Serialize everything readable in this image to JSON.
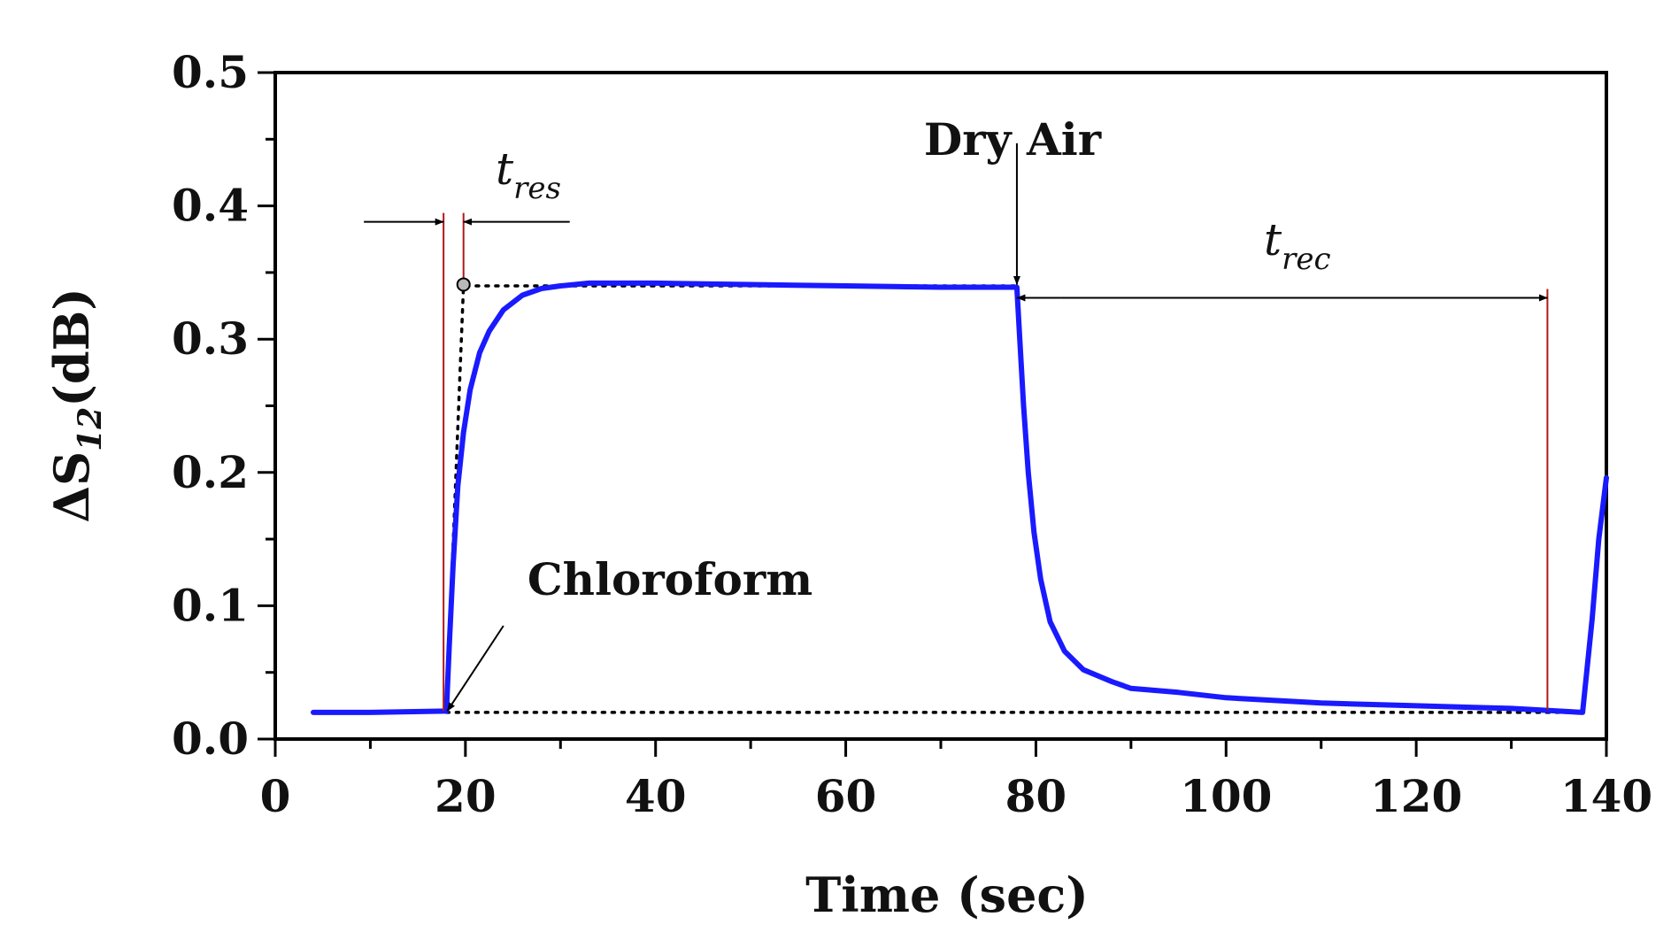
{
  "chart_data": {
    "type": "line",
    "title": "",
    "xlabel": "Time (sec)",
    "ylabel": {
      "prefix": "ΔS",
      "subscript": "12",
      "suffix": "(dB)"
    },
    "xlim": [
      0,
      140
    ],
    "ylim": [
      0.0,
      0.5
    ],
    "grid": false,
    "xticks": [
      0,
      20,
      40,
      60,
      80,
      100,
      120,
      140
    ],
    "xtick_labels": [
      "0",
      "20",
      "40",
      "60",
      "80",
      "100",
      "120",
      "140"
    ],
    "yticks": [
      0.0,
      0.1,
      0.2,
      0.3,
      0.4,
      0.5
    ],
    "ytick_labels": [
      "0.0",
      "0.1",
      "0.2",
      "0.3",
      "0.4",
      "0.5"
    ],
    "series": [
      {
        "name": "ΔS12 response",
        "color": "#1a1aff",
        "x": [
          4,
          10,
          18,
          18.3,
          18.7,
          19.2,
          19.8,
          20.5,
          21.5,
          22.5,
          24,
          26,
          28,
          30,
          33,
          40,
          50,
          60,
          70,
          78,
          78.3,
          78.7,
          79.2,
          79.8,
          80.5,
          81.5,
          83,
          85,
          88,
          90,
          95,
          100,
          110,
          120,
          130,
          137.5,
          138.5,
          139.2,
          140
        ],
        "y": [
          0.02,
          0.02,
          0.021,
          0.07,
          0.13,
          0.19,
          0.23,
          0.262,
          0.29,
          0.306,
          0.322,
          0.333,
          0.338,
          0.34,
          0.342,
          0.342,
          0.341,
          0.34,
          0.339,
          0.339,
          0.3,
          0.25,
          0.2,
          0.155,
          0.12,
          0.088,
          0.066,
          0.052,
          0.043,
          0.038,
          0.035,
          0.031,
          0.027,
          0.025,
          0.023,
          0.02,
          0.09,
          0.15,
          0.196
        ]
      }
    ],
    "reference_lines": [
      {
        "name": "ideal-step-upper",
        "style": "dotted",
        "points": [
          [
            18,
            0.021
          ],
          [
            19.8,
            0.34
          ],
          [
            78,
            0.34
          ]
        ]
      },
      {
        "name": "baseline",
        "style": "dotted",
        "points": [
          [
            18,
            0.02
          ],
          [
            137.5,
            0.02
          ]
        ]
      }
    ],
    "markers": {
      "tres_start_x": 17.7,
      "tres_end_x": 19.8,
      "tres_arrow_y": 0.388,
      "trec_start_x": 78,
      "trec_end_x": 133.8,
      "trec_arrow_y": 0.331,
      "step_point": [
        19.8,
        0.341
      ],
      "dry_air_arrow": {
        "x": 78,
        "from_y": 0.447,
        "to_y": 0.341
      },
      "chloroform_arrow": {
        "from": [
          24,
          0.085
        ],
        "to": [
          18.1,
          0.021
        ]
      }
    },
    "annotations": {
      "dry_air": "Dry Air",
      "chloroform": "Chloroform",
      "t_res": {
        "main": "t",
        "sub": "res"
      },
      "t_rec": {
        "main": "t",
        "sub": "rec"
      }
    }
  }
}
